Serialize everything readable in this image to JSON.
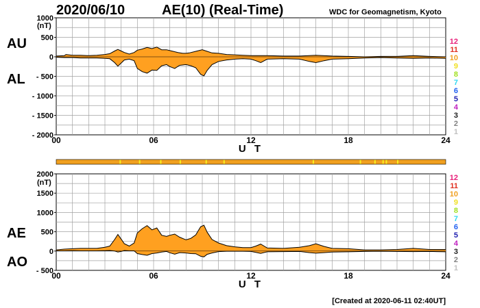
{
  "header": {
    "date": "2020/06/10",
    "title": "AE(10) (Real-Time)",
    "source": "WDC for Geomagnetism, Kyoto"
  },
  "footer": {
    "created": "[Created at 2020-06-11 02:40UT]"
  },
  "legend": {
    "items": [
      {
        "label": "12",
        "color": "#e8207a"
      },
      {
        "label": "11",
        "color": "#e03020"
      },
      {
        "label": "10",
        "color": "#f0a020"
      },
      {
        "label": "9",
        "color": "#f0e020"
      },
      {
        "label": "8",
        "color": "#a0e020"
      },
      {
        "label": "7",
        "color": "#30d8f0"
      },
      {
        "label": "6",
        "color": "#2060f0"
      },
      {
        "label": "5",
        "color": "#2020b0"
      },
      {
        "label": "4",
        "color": "#c020c0"
      },
      {
        "label": "3",
        "color": "#202020"
      },
      {
        "label": "2",
        "color": "#808080"
      },
      {
        "label": "1",
        "color": "#c0c0c0"
      }
    ]
  },
  "colors": {
    "fill": "#ffa020",
    "station_bar": "#f0a020",
    "station_bar_alt": "#f8f020",
    "grid": "#a0a0a0"
  },
  "chart_data": [
    {
      "type": "area",
      "upper_name": "AU",
      "lower_name": "AL",
      "unit": "(nT)",
      "xlabel": "U T",
      "x_ticks": [
        "00",
        "06",
        "12",
        "18",
        "24"
      ],
      "y_ticks": [
        "1000",
        "500",
        "0",
        "- 500",
        "- 1000",
        "- 1500",
        "- 2000"
      ],
      "xlim": [
        0,
        24
      ],
      "ylim": [
        -2000,
        1000
      ],
      "upper": {
        "x": [
          0,
          0.5,
          0.6,
          1,
          1.5,
          2,
          2.5,
          3,
          3.3,
          3.6,
          3.8,
          4.0,
          4.2,
          4.5,
          4.8,
          5.0,
          5.3,
          5.6,
          5.9,
          6.2,
          6.5,
          6.8,
          7.0,
          7.2,
          7.5,
          7.8,
          8.0,
          8.2,
          8.6,
          9.0,
          9.3,
          9.6,
          10.0,
          10.5,
          11,
          11.5,
          12,
          13,
          14,
          15,
          16,
          17,
          18,
          19,
          20,
          21,
          22,
          23,
          24
        ],
        "y": [
          20,
          30,
          60,
          40,
          40,
          30,
          40,
          60,
          80,
          150,
          190,
          150,
          110,
          70,
          110,
          170,
          200,
          240,
          210,
          250,
          180,
          180,
          160,
          140,
          110,
          90,
          90,
          100,
          140,
          180,
          140,
          100,
          90,
          60,
          50,
          40,
          30,
          30,
          20,
          20,
          40,
          20,
          10,
          0,
          10,
          10,
          30,
          10,
          0
        ]
      },
      "lower": {
        "x": [
          0,
          0.5,
          1,
          1.5,
          2,
          2.5,
          3,
          3.3,
          3.6,
          3.8,
          4.0,
          4.2,
          4.5,
          4.8,
          5.0,
          5.3,
          5.6,
          5.9,
          6.2,
          6.5,
          6.8,
          7.0,
          7.3,
          7.6,
          8.0,
          8.3,
          8.6,
          8.9,
          9.1,
          9.3,
          9.6,
          10.0,
          10.5,
          11,
          11.5,
          12,
          12.3,
          12.6,
          13,
          14,
          15,
          15.6,
          16,
          16.5,
          17,
          18,
          19,
          20,
          21,
          22,
          23,
          24
        ],
        "y": [
          -10,
          -20,
          -20,
          -30,
          -30,
          -30,
          -40,
          -50,
          -150,
          -240,
          -160,
          -80,
          -60,
          -100,
          -300,
          -380,
          -420,
          -340,
          -350,
          -230,
          -200,
          -250,
          -300,
          -220,
          -200,
          -230,
          -280,
          -450,
          -490,
          -350,
          -200,
          -120,
          -80,
          -60,
          -50,
          -60,
          -100,
          -150,
          -60,
          -50,
          -60,
          -120,
          -150,
          -100,
          -60,
          -50,
          -30,
          -20,
          -30,
          -40,
          -30,
          -40
        ]
      }
    },
    {
      "type": "area",
      "upper_name": "AE",
      "lower_name": "AO",
      "unit": "(nT)",
      "xlabel": "U T",
      "x_ticks": [
        "00",
        "06",
        "12",
        "18",
        "24"
      ],
      "y_ticks": [
        "2000",
        "1500",
        "1000",
        "500",
        "0",
        "- 500"
      ],
      "xlim": [
        0,
        24
      ],
      "ylim": [
        -500,
        2000
      ],
      "upper": {
        "x": [
          0,
          0.5,
          1,
          1.5,
          2,
          2.5,
          3,
          3.3,
          3.6,
          3.8,
          4.0,
          4.2,
          4.5,
          4.8,
          5.0,
          5.3,
          5.6,
          5.9,
          6.2,
          6.5,
          6.8,
          7.0,
          7.3,
          7.6,
          8.0,
          8.3,
          8.6,
          8.9,
          9.1,
          9.3,
          9.6,
          10.0,
          10.5,
          11,
          11.5,
          12,
          12.3,
          12.6,
          13,
          14,
          15,
          15.6,
          16,
          16.5,
          17,
          18,
          19,
          20,
          21,
          22,
          23,
          24
        ],
        "y": [
          30,
          50,
          60,
          70,
          70,
          70,
          100,
          130,
          300,
          430,
          310,
          190,
          130,
          210,
          470,
          580,
          660,
          550,
          600,
          410,
          380,
          410,
          440,
          360,
          290,
          330,
          420,
          630,
          670,
          490,
          300,
          210,
          140,
          110,
          90,
          90,
          130,
          180,
          80,
          70,
          100,
          140,
          190,
          120,
          70,
          60,
          30,
          30,
          40,
          70,
          40,
          40
        ]
      },
      "lower": {
        "x": [
          0,
          0.5,
          1,
          1.5,
          2,
          2.5,
          3,
          3.3,
          3.6,
          3.8,
          4.0,
          4.2,
          4.5,
          4.8,
          5.0,
          5.3,
          5.6,
          5.9,
          6.2,
          6.5,
          6.8,
          7.0,
          7.3,
          7.6,
          8.0,
          8.3,
          8.6,
          8.9,
          9.1,
          9.3,
          9.6,
          10.0,
          10.5,
          11,
          11.5,
          12,
          12.3,
          12.6,
          13,
          14,
          15,
          15.6,
          16,
          16.5,
          17,
          18,
          19,
          20,
          21,
          22,
          23,
          24
        ],
        "y": [
          5,
          5,
          10,
          5,
          5,
          5,
          10,
          15,
          0,
          -25,
          -10,
          15,
          5,
          5,
          -65,
          -90,
          -110,
          -65,
          -50,
          -25,
          -10,
          -45,
          -80,
          -40,
          -50,
          -65,
          -70,
          -135,
          -150,
          -85,
          -50,
          -15,
          -5,
          -5,
          -5,
          -10,
          -35,
          -60,
          -20,
          -15,
          -10,
          -40,
          -55,
          -40,
          -25,
          -20,
          -10,
          -5,
          -10,
          -15,
          -10,
          -20
        ]
      }
    }
  ]
}
